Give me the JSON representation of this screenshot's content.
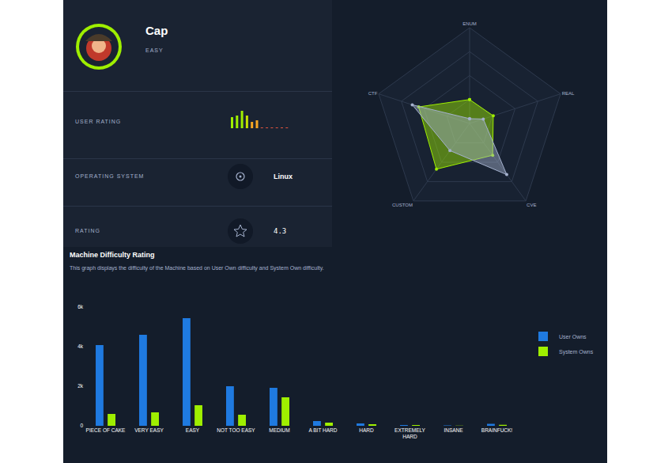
{
  "profile": {
    "name": "Cap",
    "difficulty": "EASY",
    "rows": [
      {
        "label": "USER RATING",
        "bars": {
          "values": [
            14,
            16,
            22,
            16,
            8,
            10,
            1,
            1,
            1,
            1,
            1,
            1
          ],
          "colors": [
            "#9fef00",
            "#9fef00",
            "#9fef00",
            "#c4e000",
            "#f5a623",
            "#f5a623",
            "#e0533d",
            "#e0533d",
            "#e0533d",
            "#e0533d",
            "#e0533d",
            "#e0533d"
          ]
        }
      },
      {
        "label": "OPERATING SYSTEM",
        "value": "Linux"
      },
      {
        "label": "RATING",
        "value": 4.3
      }
    ]
  },
  "chart_data": [
    {
      "type": "radar",
      "categories": [
        "ENUM",
        "REAL",
        "CVE",
        "CUSTOM",
        "CTF"
      ],
      "series": [
        {
          "color": "#9fef00",
          "values": [
            2.5,
            2.6,
            4.1,
            5.9,
            5.6
          ]
        },
        {
          "color": "#a4b1cd",
          "values": [
            0.5,
            1.5,
            6.6,
            3.5,
            6.3
          ]
        }
      ],
      "ylim": [
        0,
        10
      ],
      "yticks": [
        2.5,
        5,
        7.5,
        10
      ],
      "grid": true,
      "tick_labels": false
    },
    {
      "type": "bar",
      "title": "Machine Difficulty Rating",
      "subtitle": "This graph displays the difficulty of the Machine based on User Own difficulty and System Own difficulty.",
      "categories": [
        "PIECE OF CAKE",
        "VERY EASY",
        "EASY",
        "NOT TOO EASY",
        "MEDIUM",
        "A BIT HARD",
        "HARD",
        "EXTREMELY HARD",
        "INSANE",
        "BRAINFUCK!"
      ],
      "series": [
        {
          "name": "User Owns",
          "color": "#1f7ae0",
          "values": [
            4080,
            4600,
            5440,
            2000,
            1920,
            240,
            120,
            40,
            20,
            100
          ]
        },
        {
          "name": "System Owns",
          "color": "#9fef00",
          "values": [
            600,
            680,
            1040,
            560,
            1440,
            160,
            80,
            40,
            10,
            50
          ]
        }
      ],
      "ylim": [
        0,
        6000
      ],
      "yticks": [
        0,
        {
          "value": 2000,
          "label": "2k"
        },
        {
          "value": 4000,
          "label": "4k"
        },
        {
          "value": 6000,
          "label": "6k"
        }
      ],
      "legend": "right",
      "grid": false
    }
  ]
}
